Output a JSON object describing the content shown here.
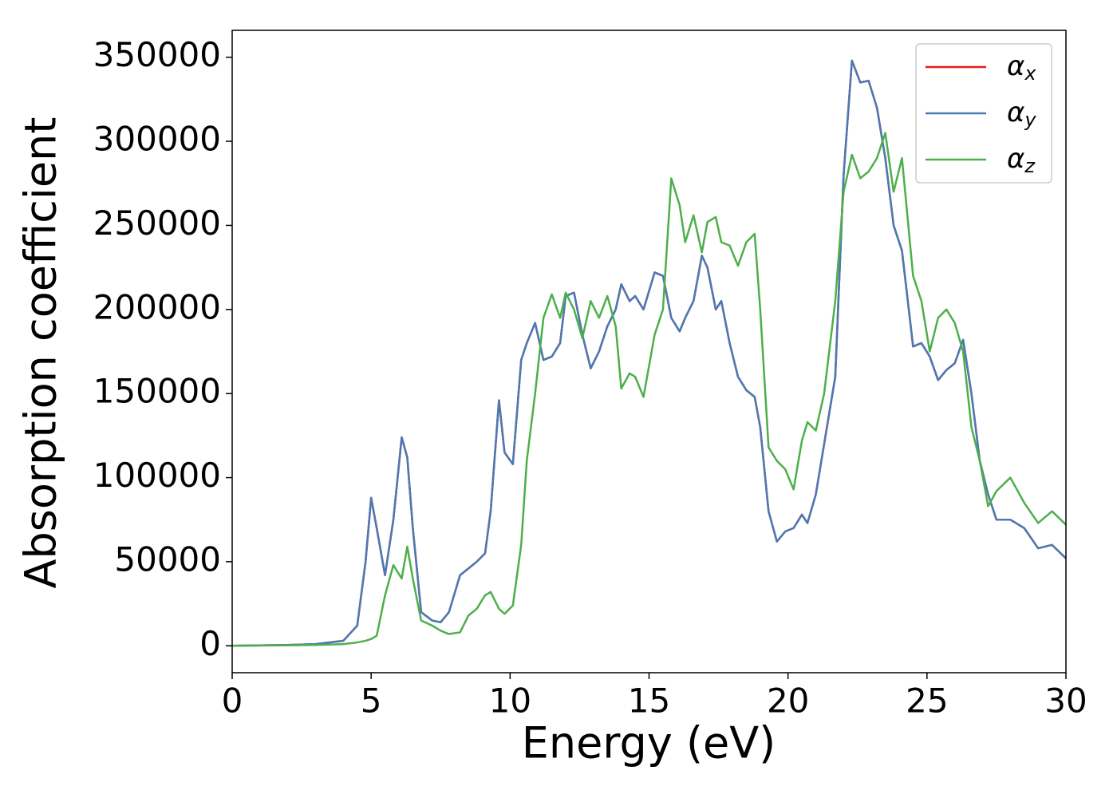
{
  "chart_data": {
    "type": "line",
    "xlabel": "Energy (eV)",
    "ylabel": "Absorption coefficient",
    "x": [
      0,
      2,
      3,
      4,
      4.5,
      4.8,
      5.0,
      5.2,
      5.5,
      5.8,
      6.1,
      6.3,
      6.5,
      6.8,
      7.2,
      7.5,
      7.8,
      8.2,
      8.5,
      8.8,
      9.1,
      9.3,
      9.6,
      9.8,
      10.1,
      10.4,
      10.6,
      10.9,
      11.2,
      11.5,
      11.8,
      12.0,
      12.3,
      12.6,
      12.9,
      13.2,
      13.5,
      13.8,
      14.0,
      14.3,
      14.5,
      14.8,
      15.2,
      15.5,
      15.8,
      16.1,
      16.3,
      16.6,
      16.9,
      17.1,
      17.4,
      17.6,
      17.9,
      18.2,
      18.5,
      18.8,
      19.0,
      19.3,
      19.6,
      19.9,
      20.2,
      20.5,
      20.7,
      21.0,
      21.3,
      21.7,
      22.0,
      22.3,
      22.6,
      22.9,
      23.2,
      23.5,
      23.8,
      24.1,
      24.5,
      24.8,
      25.1,
      25.4,
      25.7,
      26.0,
      26.3,
      26.6,
      26.9,
      27.2,
      27.5,
      28.0,
      28.5,
      29.0,
      29.5,
      30
    ],
    "series": [
      {
        "name": "αx",
        "color": "#e41a1c",
        "values": [
          0,
          500,
          1000,
          3000,
          12000,
          50000,
          88000,
          70000,
          42000,
          75000,
          124000,
          112000,
          70000,
          20000,
          15000,
          14000,
          20000,
          42000,
          46000,
          50000,
          55000,
          80000,
          146000,
          115000,
          108000,
          170000,
          180000,
          192000,
          170000,
          172000,
          180000,
          208000,
          210000,
          185000,
          165000,
          175000,
          190000,
          200000,
          215000,
          205000,
          208000,
          200000,
          222000,
          220000,
          195000,
          187000,
          195000,
          205000,
          232000,
          225000,
          200000,
          205000,
          180000,
          160000,
          152000,
          148000,
          130000,
          80000,
          62000,
          68000,
          70000,
          78000,
          73000,
          90000,
          120000,
          160000,
          280000,
          348000,
          335000,
          336000,
          320000,
          290000,
          250000,
          235000,
          178000,
          180000,
          172000,
          158000,
          164000,
          168000,
          182000,
          150000,
          110000,
          90000,
          75000,
          75000,
          70000,
          58000,
          60000,
          52000
        ]
      },
      {
        "name": "αy",
        "color": "#4a7ab5",
        "values": [
          0,
          500,
          1000,
          3000,
          12000,
          50000,
          88000,
          70000,
          42000,
          75000,
          124000,
          112000,
          70000,
          20000,
          15000,
          14000,
          20000,
          42000,
          46000,
          50000,
          55000,
          80000,
          146000,
          115000,
          108000,
          170000,
          180000,
          192000,
          170000,
          172000,
          180000,
          208000,
          210000,
          185000,
          165000,
          175000,
          190000,
          200000,
          215000,
          205000,
          208000,
          200000,
          222000,
          220000,
          195000,
          187000,
          195000,
          205000,
          232000,
          225000,
          200000,
          205000,
          180000,
          160000,
          152000,
          148000,
          130000,
          80000,
          62000,
          68000,
          70000,
          78000,
          73000,
          90000,
          120000,
          160000,
          280000,
          348000,
          335000,
          336000,
          320000,
          290000,
          250000,
          235000,
          178000,
          180000,
          172000,
          158000,
          164000,
          168000,
          182000,
          150000,
          110000,
          90000,
          75000,
          75000,
          70000,
          58000,
          60000,
          52000
        ]
      },
      {
        "name": "αz",
        "color": "#4daf4a",
        "values": [
          0,
          300,
          500,
          1000,
          2000,
          3000,
          4000,
          6000,
          30000,
          48000,
          40000,
          59000,
          40000,
          15000,
          12000,
          9000,
          7000,
          8000,
          18000,
          22000,
          30000,
          32000,
          22000,
          19000,
          24000,
          60000,
          110000,
          150000,
          195000,
          209000,
          195000,
          210000,
          200000,
          183000,
          205000,
          195000,
          208000,
          190000,
          153000,
          162000,
          160000,
          148000,
          185000,
          200000,
          278000,
          262000,
          240000,
          256000,
          234000,
          252000,
          255000,
          240000,
          238000,
          226000,
          240000,
          245000,
          200000,
          118000,
          110000,
          105000,
          93000,
          122000,
          133000,
          128000,
          150000,
          205000,
          270000,
          292000,
          278000,
          282000,
          290000,
          305000,
          270000,
          290000,
          220000,
          205000,
          175000,
          195000,
          200000,
          192000,
          175000,
          130000,
          110000,
          83000,
          92000,
          100000,
          85000,
          73000,
          80000,
          72000
        ]
      }
    ],
    "xlim": [
      0,
      30
    ],
    "xticks": [
      0,
      5,
      10,
      15,
      20,
      25,
      30
    ],
    "ylim": [
      -16000,
      366000
    ],
    "yticks": [
      0,
      50000,
      100000,
      150000,
      200000,
      250000,
      300000,
      350000
    ],
    "legend": "upper right"
  }
}
